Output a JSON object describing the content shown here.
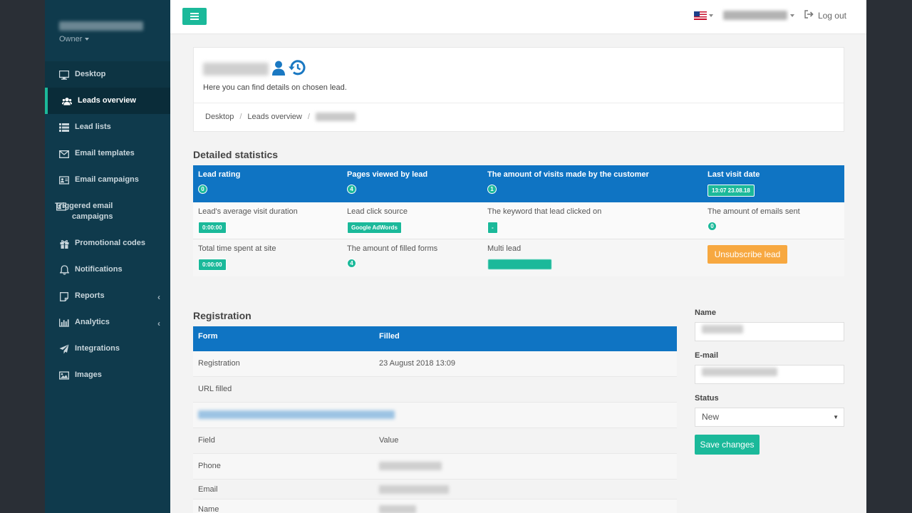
{
  "sidebar": {
    "user_email": "",
    "user_role": "Owner",
    "items": [
      {
        "label": "Desktop",
        "icon": "desktop-icon"
      },
      {
        "label": "Leads overview",
        "icon": "users-icon"
      },
      {
        "label": "Lead lists",
        "icon": "list-icon"
      },
      {
        "label": "Email templates",
        "icon": "envelope-icon"
      },
      {
        "label": "Email campaigns",
        "icon": "contact-card-icon"
      },
      {
        "label": "Triggered email campaigns",
        "icon": "contact-card-icon"
      },
      {
        "label": "Promotional codes",
        "icon": "gift-icon"
      },
      {
        "label": "Notifications",
        "icon": "bell-icon"
      },
      {
        "label": "Reports",
        "icon": "note-icon"
      },
      {
        "label": "Analytics",
        "icon": "bar-chart-icon"
      },
      {
        "label": "Integrations",
        "icon": "paper-plane-icon"
      },
      {
        "label": "Images",
        "icon": "image-icon"
      }
    ],
    "expand_arrow": "‹"
  },
  "topbar": {
    "site_name": "",
    "logout_label": "Log out"
  },
  "page": {
    "lead_name": "",
    "subtitle": "Here you can find details on chosen lead.",
    "breadcrumb": [
      "Desktop",
      "Leads overview",
      ""
    ]
  },
  "stats": {
    "title": "Detailed statistics",
    "header": [
      {
        "label": "Lead rating",
        "value": "0"
      },
      {
        "label": "Pages viewed by lead",
        "value": "4"
      },
      {
        "label": "The amount of visits made by the customer",
        "value": "1"
      },
      {
        "label": "Last visit date",
        "value": "13:07 23.08.18"
      }
    ],
    "row1": [
      {
        "label": "Lead's average visit duration",
        "value": "0:00:00"
      },
      {
        "label": "Lead click source",
        "value": "Google AdWords"
      },
      {
        "label": "The keyword that lead clicked on",
        "value": "-"
      },
      {
        "label": "The amount of emails sent",
        "value": "0"
      }
    ],
    "row2": [
      {
        "label": "Total time spent at site",
        "value": "0:00:00"
      },
      {
        "label": "The amount of filled forms",
        "value": "4"
      },
      {
        "label": "Multi lead",
        "value": ""
      }
    ],
    "unsubscribe_label": "Unsubscribe lead"
  },
  "registration": {
    "title": "Registration",
    "col_form": "Form",
    "col_filled": "Filled",
    "form_name": "Registration",
    "filled_date": "23 August 2018 13:09",
    "url_filled_label": "URL filled",
    "url_value": "",
    "field_header": "Field",
    "value_header": "Value",
    "fields": [
      {
        "name": "Phone",
        "value": ""
      },
      {
        "name": "Email",
        "value": ""
      },
      {
        "name": "Name",
        "value": ""
      }
    ]
  },
  "edit_form": {
    "name_label": "Name",
    "name_value": "",
    "email_label": "E-mail",
    "email_value": "",
    "status_label": "Status",
    "status_value": "New",
    "save_label": "Save changes"
  },
  "colors": {
    "sidebar_bg": "#0f3a4c",
    "accent": "#1bb99a",
    "table_header": "#0f74c3",
    "warning": "#f7a840"
  }
}
